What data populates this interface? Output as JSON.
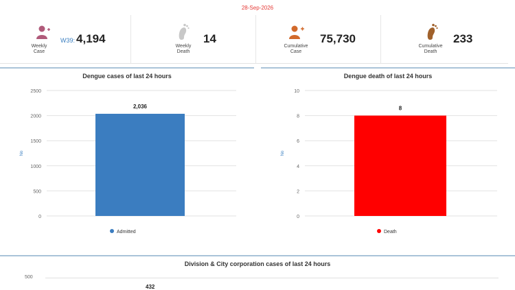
{
  "date": "28-Sep-2026",
  "stats": {
    "weekly_case": {
      "label_line1": "Weekly",
      "label_line2": "Case",
      "week": "W39:",
      "value": "4,194",
      "icon": "person-plus-icon",
      "color": "#b05a7a"
    },
    "weekly_death": {
      "label_line1": "Weekly",
      "label_line2": "Death",
      "value": "14",
      "icon": "footprint-icon",
      "color": "#c8c8c8"
    },
    "cumulative_case": {
      "label_line1": "Cumulative",
      "label_line2": "Case",
      "value": "75,730",
      "icon": "person-plus-icon",
      "color": "#d26a2b"
    },
    "cumulative_death": {
      "label_line1": "Cumulative",
      "label_line2": "Death",
      "value": "233",
      "icon": "footprint-icon",
      "color": "#a0612b"
    }
  },
  "panels": {
    "left_title": "Dengue cases of last 24 hours",
    "right_title": "Dengue death of last 24 hours",
    "bottom_title": "Division & City corporation cases of last 24 hours"
  },
  "chart_data": [
    {
      "type": "bar",
      "title": "Dengue cases of last 24 hours",
      "ylabel": "No",
      "categories": [
        "Admitted"
      ],
      "values": [
        2036
      ],
      "value_labels": [
        "2,036"
      ],
      "series": [
        {
          "name": "Admitted",
          "values": [
            2036
          ],
          "color": "#3b7dc0"
        }
      ],
      "ylim": [
        0,
        2500
      ],
      "yticks": [
        0,
        500,
        1000,
        1500,
        2000,
        2500
      ],
      "ytick_labels": [
        "0",
        "500",
        "1000",
        "1500",
        "2000",
        "2500"
      ],
      "legend": "bottom"
    },
    {
      "type": "bar",
      "title": "Dengue death of last 24 hours",
      "ylabel": "No",
      "categories": [
        "Death"
      ],
      "values": [
        8
      ],
      "value_labels": [
        "8"
      ],
      "series": [
        {
          "name": "Death",
          "values": [
            8
          ],
          "color": "#ff0000"
        }
      ],
      "ylim": [
        0,
        10
      ],
      "yticks": [
        0,
        2,
        4,
        6,
        8,
        10
      ],
      "ytick_labels": [
        "0",
        "2",
        "4",
        "6",
        "8",
        "10"
      ],
      "legend": "bottom"
    },
    {
      "type": "bar",
      "title": "Division & City corporation cases of last 24 hours",
      "first_ytick_label": "500",
      "first_value_label": "432"
    }
  ]
}
